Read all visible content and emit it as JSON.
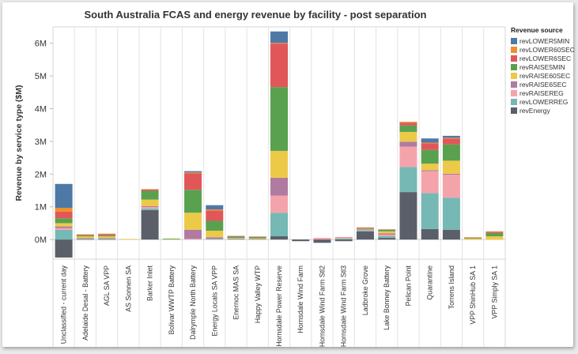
{
  "chart_data": {
    "type": "bar",
    "stacked": true,
    "title": "South Australia FCAS and energy revenue by facility - post separation",
    "ylabel": "Revenue by service type ($M)",
    "xlabel": "",
    "ylim": [
      -0.6,
      6.5
    ],
    "yticks": [
      0,
      1,
      2,
      3,
      4,
      5,
      6
    ],
    "ytick_labels": [
      "0M",
      "1M",
      "2M",
      "3M",
      "4M",
      "5M",
      "6M"
    ],
    "grid": "vertical category separators",
    "legend_title": "Revenue source",
    "legend_placement": "right",
    "categories": [
      "Unclassified - current day",
      "Adelaide Desal - Battery",
      "AGL SA VPP",
      "AS Sonnen SA",
      "Barker Inlet",
      "Bolivar WWTP Battery",
      "Dalrymple North Battery",
      "Energy Locals SA VPP",
      "Enernoc MAS SA",
      "Happy Valley WTP",
      "Hornsdale Power Reserve",
      "Hornsdale Wind Farm",
      "Hornsdale Wind Farm Stl2",
      "Hornsdale Wind Farm Stl3",
      "Ladbroke Grove",
      "Lake Bonney Battery",
      "Pelican Point",
      "Quarantine",
      "Torrens Island",
      "VPP ShinHub SA 1",
      "VPP Simply SA 1"
    ],
    "series": [
      {
        "name": "revEnergy",
        "color": "#5a5f69",
        "values": [
          -0.55,
          0.01,
          0.01,
          0.0,
          0.9,
          0.0,
          0.0,
          0.0,
          0.0,
          0.0,
          0.1,
          -0.05,
          -0.1,
          -0.05,
          0.25,
          0.05,
          1.45,
          0.32,
          0.3,
          0.0,
          0.0
        ]
      },
      {
        "name": "revLOWERREG",
        "color": "#76b8b3",
        "values": [
          0.3,
          0.02,
          0.02,
          0.0,
          0.05,
          0.0,
          0.0,
          0.02,
          0.02,
          0.01,
          0.72,
          0.0,
          0.0,
          0.03,
          0.03,
          0.05,
          0.77,
          1.1,
          0.98,
          0.0,
          0.0
        ]
      },
      {
        "name": "revRAISEREG",
        "color": "#f5a3aa",
        "values": [
          0.05,
          0.01,
          0.01,
          0.0,
          0.04,
          0.0,
          0.02,
          0.0,
          0.0,
          0.0,
          0.52,
          0.0,
          0.03,
          0.03,
          0.02,
          0.05,
          0.62,
          0.67,
          0.7,
          0.0,
          0.0
        ]
      },
      {
        "name": "revRAISE6SEC",
        "color": "#b07aa1",
        "values": [
          0.05,
          0.01,
          0.01,
          0.0,
          0.03,
          0.0,
          0.28,
          0.05,
          0.01,
          0.01,
          0.55,
          0.0,
          0.0,
          0.0,
          0.02,
          0.04,
          0.15,
          0.03,
          0.03,
          0.0,
          0.0
        ]
      },
      {
        "name": "revRAISE60SEC",
        "color": "#edc948",
        "values": [
          0.1,
          0.05,
          0.05,
          0.02,
          0.2,
          0.01,
          0.52,
          0.2,
          0.02,
          0.02,
          0.82,
          0.0,
          0.0,
          0.0,
          0.01,
          0.06,
          0.3,
          0.2,
          0.4,
          0.03,
          0.1
        ]
      },
      {
        "name": "revRAISE5MIN",
        "color": "#59a14f",
        "values": [
          0.15,
          0.03,
          0.03,
          0.0,
          0.27,
          0.02,
          0.7,
          0.3,
          0.04,
          0.04,
          1.95,
          0.0,
          0.0,
          0.0,
          0.02,
          0.05,
          0.2,
          0.42,
          0.5,
          0.02,
          0.1
        ]
      },
      {
        "name": "revLOWER6SEC",
        "color": "#e15759",
        "values": [
          0.2,
          0.02,
          0.04,
          0.0,
          0.04,
          0.0,
          0.5,
          0.32,
          0.02,
          0.01,
          1.33,
          0.0,
          0.01,
          0.01,
          0.02,
          0.01,
          0.08,
          0.2,
          0.18,
          0.01,
          0.04
        ]
      },
      {
        "name": "revLOWER60SEC",
        "color": "#f28e2b",
        "values": [
          0.12,
          0.01,
          0.01,
          0.0,
          0.01,
          0.0,
          0.03,
          0.03,
          0.0,
          0.0,
          0.02,
          0.0,
          0.0,
          0.0,
          0.0,
          0.0,
          0.03,
          0.02,
          0.02,
          0.01,
          0.01
        ]
      },
      {
        "name": "revLOWER5MIN",
        "color": "#4e79a7",
        "values": [
          0.73,
          0.0,
          0.0,
          0.0,
          0.0,
          0.0,
          0.04,
          0.13,
          0.0,
          0.0,
          0.35,
          0.0,
          0.0,
          0.0,
          0.0,
          0.0,
          0.0,
          0.13,
          0.06,
          0.0,
          0.0
        ]
      }
    ],
    "legend_order": [
      "revLOWER5MIN",
      "revLOWER60SEC",
      "revLOWER6SEC",
      "revRAISE5MIN",
      "revRAISE60SEC",
      "revRAISE6SEC",
      "revRAISEREG",
      "revLOWERREG",
      "revEnergy"
    ]
  }
}
